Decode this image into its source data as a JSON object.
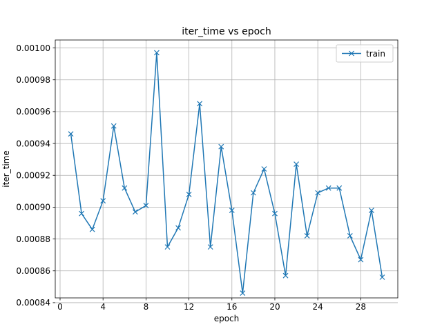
{
  "chart_data": {
    "type": "line",
    "title": "iter_time vs epoch",
    "xlabel": "epoch",
    "ylabel": "iter_time",
    "xlim": [
      -0.45,
      31.45
    ],
    "ylim": [
      0.000843,
      0.001005
    ],
    "xticks": [
      0,
      4,
      8,
      12,
      16,
      20,
      24,
      28
    ],
    "yticks": [
      0.00084,
      0.00086,
      0.00088,
      0.0009,
      0.00092,
      0.00094,
      0.00096,
      0.00098,
      0.001
    ],
    "ytick_labels": [
      "0.00084",
      "0.00086",
      "0.00088",
      "0.00090",
      "0.00092",
      "0.00094",
      "0.00096",
      "0.00098",
      "0.00100"
    ],
    "grid": true,
    "legend_position": "top-right",
    "series": [
      {
        "name": "train",
        "color": "#1f77b4",
        "marker": "x",
        "x": [
          1,
          2,
          3,
          4,
          5,
          6,
          7,
          8,
          9,
          10,
          11,
          12,
          13,
          14,
          15,
          16,
          17,
          18,
          19,
          20,
          21,
          22,
          23,
          24,
          25,
          26,
          27,
          28,
          29,
          30
        ],
        "values": [
          0.000946,
          0.000896,
          0.000886,
          0.000904,
          0.000951,
          0.000912,
          0.000897,
          0.000901,
          0.000997,
          0.000875,
          0.000887,
          0.000908,
          0.000965,
          0.000875,
          0.000938,
          0.000898,
          0.000846,
          0.000909,
          0.000924,
          0.000896,
          0.000857,
          0.000927,
          0.000882,
          0.000909,
          0.000912,
          0.000912,
          0.000882,
          0.000867,
          0.000898,
          0.000856
        ]
      }
    ]
  }
}
